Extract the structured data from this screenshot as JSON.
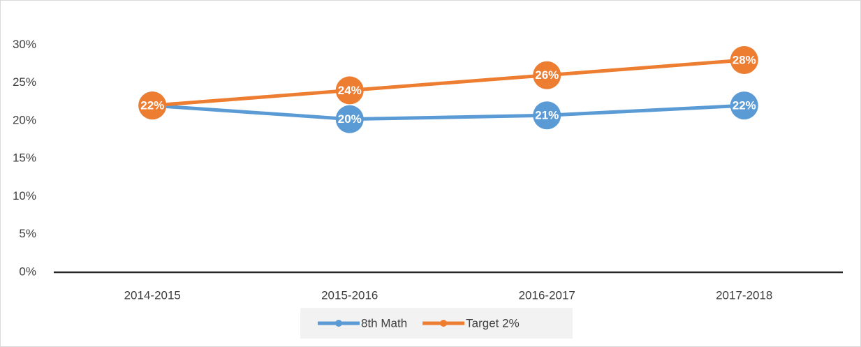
{
  "chart_data": {
    "type": "line",
    "categories": [
      "2014-2015",
      "2015-2016",
      "2016-2017",
      "2017-2018"
    ],
    "series": [
      {
        "name": "8th Math",
        "color": "#5b9bd5",
        "values": [
          22,
          20.2,
          20.7,
          22
        ],
        "value_labels": [
          "22%",
          "20%",
          "21%",
          "22%"
        ]
      },
      {
        "name": "Target 2%",
        "color": "#ed7d31",
        "values": [
          22,
          24,
          26,
          28
        ],
        "value_labels": [
          "22%",
          "24%",
          "26%",
          "28%"
        ]
      }
    ],
    "ylim": [
      0,
      35
    ],
    "yticks": [
      {
        "value": 0,
        "label": "0%"
      },
      {
        "value": 5,
        "label": "5%"
      },
      {
        "value": 10,
        "label": "10%"
      },
      {
        "value": 15,
        "label": "15%"
      },
      {
        "value": 20,
        "label": "20%"
      },
      {
        "value": 25,
        "label": "25%"
      },
      {
        "value": 30,
        "label": "30%"
      }
    ],
    "grid": false,
    "legend": "bottom"
  }
}
